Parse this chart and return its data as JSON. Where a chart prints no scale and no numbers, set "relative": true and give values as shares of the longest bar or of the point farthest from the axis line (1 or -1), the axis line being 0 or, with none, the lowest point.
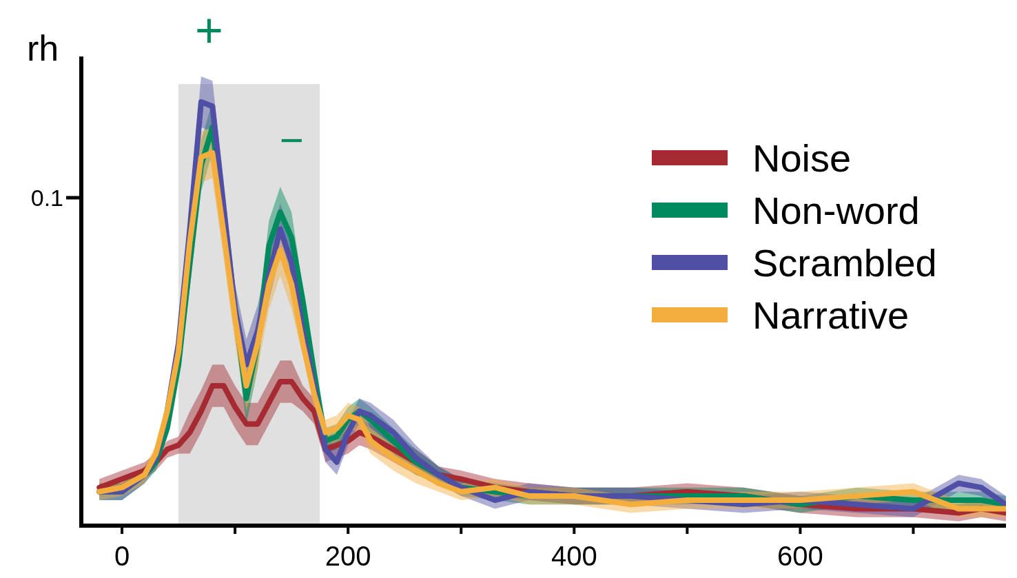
{
  "chart_data": {
    "type": "line",
    "ylabel": "rh",
    "relative": true,
    "legend": "top right",
    "grid": false,
    "marker": "none",
    "line_style": "solid",
    "x": [
      -20,
      0,
      20,
      30,
      40,
      50,
      60,
      70,
      80,
      90,
      100,
      110,
      120,
      130,
      140,
      150,
      160,
      170,
      180,
      190,
      200,
      210,
      220,
      240,
      260,
      280,
      300,
      330,
      360,
      400,
      450,
      500,
      550,
      600,
      650,
      700,
      740,
      760,
      782
    ],
    "xlim": [
      -36,
      782
    ],
    "xticks": [
      0,
      {
        "value": 100,
        "label": null
      },
      200,
      {
        "value": 300,
        "label": null
      },
      400,
      {
        "value": 500,
        "label": null
      },
      600,
      {
        "value": 700,
        "label": null
      }
    ],
    "bands": [
      {
        "axis": "x",
        "from": 50,
        "to": 175,
        "color": "#dfe0df"
      }
    ],
    "annotations": [
      "+",
      "−",
      "0.1"
    ],
    "series": [
      {
        "name": "Noise",
        "color": "#a52a32",
        "values": [
          0.09,
          0.11,
          0.13,
          0.15,
          0.18,
          0.19,
          0.22,
          0.27,
          0.33,
          0.33,
          0.28,
          0.24,
          0.24,
          0.29,
          0.34,
          0.34,
          0.3,
          0.27,
          0.18,
          0.19,
          0.2,
          0.22,
          0.21,
          0.18,
          0.15,
          0.12,
          0.11,
          0.09,
          0.08,
          0.07,
          0.07,
          0.08,
          0.07,
          0.05,
          0.04,
          0.04,
          0.03,
          0.04,
          0.03
        ],
        "lower": [
          0.07,
          0.09,
          0.11,
          0.13,
          0.16,
          0.17,
          0.17,
          0.22,
          0.28,
          0.28,
          0.23,
          0.19,
          0.19,
          0.24,
          0.29,
          0.29,
          0.27,
          0.24,
          0.15,
          0.16,
          0.17,
          0.19,
          0.18,
          0.15,
          0.12,
          0.1,
          0.09,
          0.07,
          0.06,
          0.05,
          0.05,
          0.06,
          0.05,
          0.03,
          0.02,
          0.02,
          0.01,
          0.02,
          0.01
        ],
        "upper": [
          0.11,
          0.13,
          0.15,
          0.17,
          0.2,
          0.21,
          0.27,
          0.32,
          0.38,
          0.38,
          0.33,
          0.29,
          0.29,
          0.34,
          0.39,
          0.39,
          0.33,
          0.3,
          0.21,
          0.22,
          0.23,
          0.25,
          0.24,
          0.21,
          0.18,
          0.14,
          0.13,
          0.11,
          0.1,
          0.09,
          0.09,
          0.1,
          0.09,
          0.07,
          0.06,
          0.06,
          0.05,
          0.06,
          0.05
        ]
      },
      {
        "name": "Non-word",
        "color": "#008a5e",
        "values": [
          0.08,
          0.08,
          0.12,
          0.15,
          0.23,
          0.38,
          0.62,
          0.85,
          0.94,
          0.72,
          0.51,
          0.3,
          0.43,
          0.66,
          0.74,
          0.68,
          0.53,
          0.36,
          0.2,
          0.21,
          0.25,
          0.27,
          0.25,
          0.2,
          0.15,
          0.12,
          0.09,
          0.08,
          0.07,
          0.07,
          0.07,
          0.07,
          0.07,
          0.05,
          0.07,
          0.06,
          0.06,
          0.06,
          0.05
        ],
        "lower": [
          0.06,
          0.06,
          0.1,
          0.13,
          0.21,
          0.36,
          0.56,
          0.79,
          0.88,
          0.66,
          0.45,
          0.24,
          0.37,
          0.6,
          0.68,
          0.62,
          0.5,
          0.33,
          0.17,
          0.18,
          0.22,
          0.24,
          0.22,
          0.17,
          0.12,
          0.1,
          0.07,
          0.06,
          0.05,
          0.05,
          0.05,
          0.05,
          0.05,
          0.03,
          0.05,
          0.04,
          0.04,
          0.04,
          0.03
        ],
        "upper": [
          0.1,
          0.1,
          0.14,
          0.17,
          0.25,
          0.4,
          0.68,
          0.91,
          1.0,
          0.78,
          0.57,
          0.36,
          0.49,
          0.72,
          0.8,
          0.74,
          0.56,
          0.39,
          0.23,
          0.24,
          0.28,
          0.3,
          0.28,
          0.23,
          0.18,
          0.14,
          0.11,
          0.1,
          0.09,
          0.09,
          0.09,
          0.09,
          0.09,
          0.07,
          0.09,
          0.08,
          0.08,
          0.08,
          0.07
        ]
      },
      {
        "name": "Scrambled",
        "color": "#4f4fa5",
        "values": [
          0.08,
          0.08,
          0.12,
          0.16,
          0.27,
          0.43,
          0.7,
          1.0,
          0.99,
          0.75,
          0.51,
          0.38,
          0.46,
          0.59,
          0.7,
          0.62,
          0.46,
          0.33,
          0.18,
          0.15,
          0.22,
          0.27,
          0.26,
          0.22,
          0.16,
          0.12,
          0.09,
          0.06,
          0.08,
          0.07,
          0.07,
          0.06,
          0.05,
          0.06,
          0.05,
          0.04,
          0.1,
          0.09,
          0.05
        ],
        "lower": [
          0.06,
          0.06,
          0.1,
          0.14,
          0.25,
          0.41,
          0.64,
          0.94,
          0.93,
          0.69,
          0.45,
          0.32,
          0.4,
          0.53,
          0.64,
          0.56,
          0.43,
          0.3,
          0.15,
          0.12,
          0.19,
          0.24,
          0.23,
          0.19,
          0.13,
          0.1,
          0.07,
          0.04,
          0.06,
          0.05,
          0.05,
          0.04,
          0.03,
          0.04,
          0.03,
          0.02,
          0.08,
          0.07,
          0.03
        ],
        "upper": [
          0.1,
          0.1,
          0.14,
          0.18,
          0.29,
          0.45,
          0.76,
          1.06,
          1.05,
          0.81,
          0.57,
          0.44,
          0.52,
          0.65,
          0.76,
          0.68,
          0.49,
          0.36,
          0.21,
          0.18,
          0.25,
          0.3,
          0.29,
          0.25,
          0.19,
          0.14,
          0.11,
          0.08,
          0.1,
          0.09,
          0.09,
          0.08,
          0.07,
          0.08,
          0.07,
          0.06,
          0.12,
          0.11,
          0.07
        ]
      },
      {
        "name": "Narrative",
        "color": "#f3ae3e",
        "values": [
          0.08,
          0.09,
          0.12,
          0.17,
          0.27,
          0.41,
          0.67,
          0.87,
          0.88,
          0.69,
          0.49,
          0.33,
          0.43,
          0.57,
          0.65,
          0.57,
          0.43,
          0.31,
          0.22,
          0.23,
          0.26,
          0.25,
          0.2,
          0.16,
          0.13,
          0.1,
          0.08,
          0.09,
          0.07,
          0.07,
          0.05,
          0.06,
          0.06,
          0.06,
          0.07,
          0.08,
          0.04,
          0.04,
          0.04
        ],
        "lower": [
          0.06,
          0.07,
          0.1,
          0.15,
          0.25,
          0.39,
          0.61,
          0.81,
          0.82,
          0.63,
          0.43,
          0.27,
          0.37,
          0.51,
          0.59,
          0.51,
          0.4,
          0.28,
          0.19,
          0.2,
          0.23,
          0.22,
          0.17,
          0.13,
          0.1,
          0.08,
          0.06,
          0.07,
          0.05,
          0.05,
          0.03,
          0.04,
          0.04,
          0.04,
          0.05,
          0.06,
          0.02,
          0.02,
          0.02
        ],
        "upper": [
          0.1,
          0.11,
          0.14,
          0.19,
          0.29,
          0.43,
          0.73,
          0.93,
          0.94,
          0.75,
          0.55,
          0.39,
          0.49,
          0.63,
          0.71,
          0.63,
          0.46,
          0.34,
          0.25,
          0.26,
          0.29,
          0.28,
          0.23,
          0.19,
          0.16,
          0.12,
          0.1,
          0.11,
          0.09,
          0.09,
          0.07,
          0.08,
          0.08,
          0.08,
          0.09,
          0.1,
          0.06,
          0.06,
          0.06
        ]
      }
    ]
  }
}
